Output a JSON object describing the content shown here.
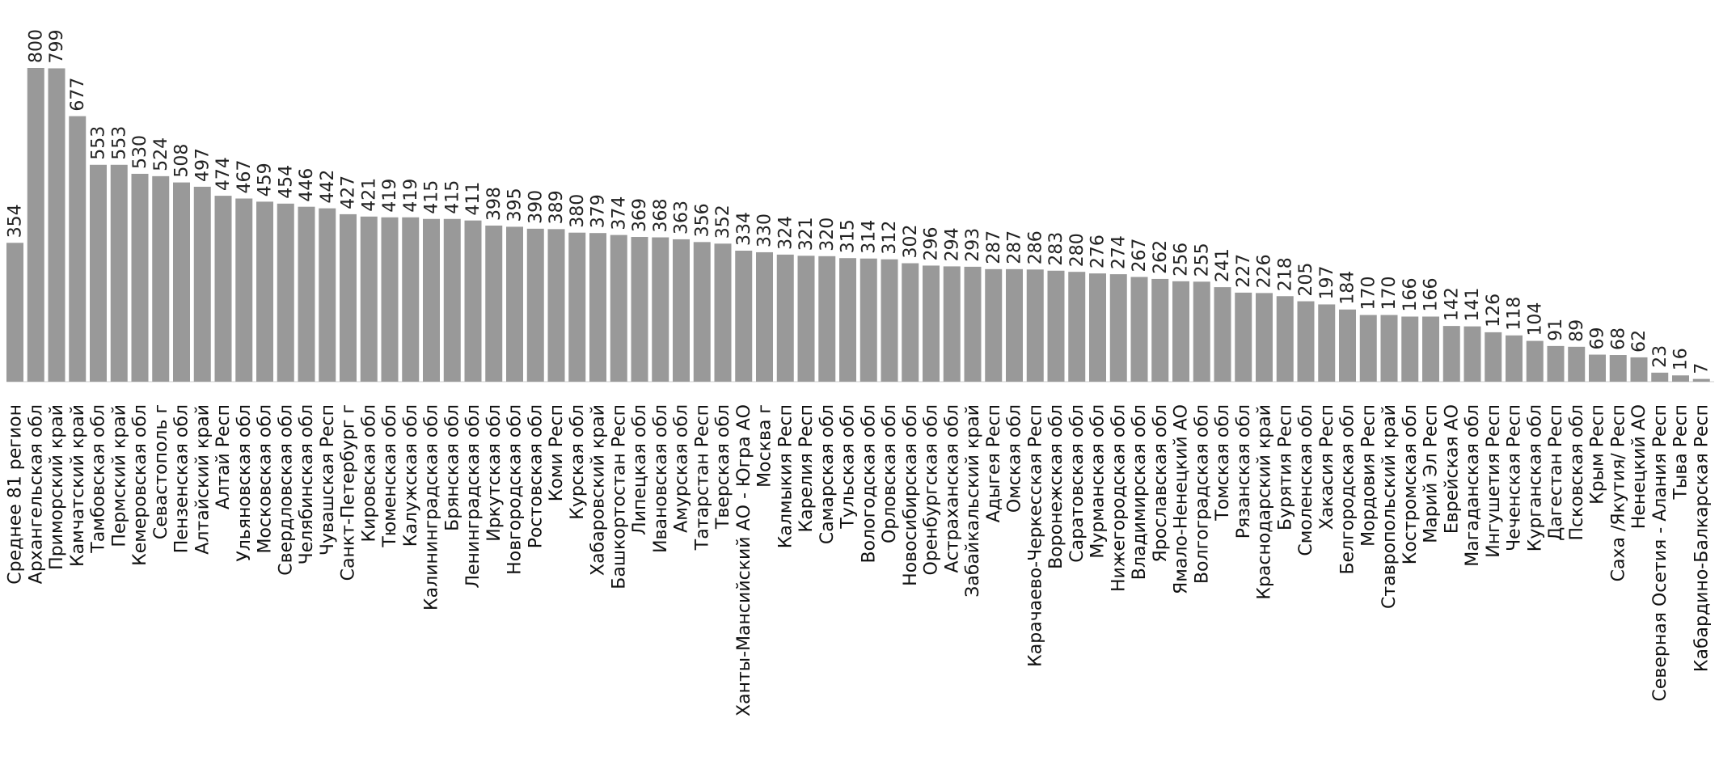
{
  "chart_data": {
    "type": "bar",
    "title": "",
    "xlabel": "",
    "ylabel": "",
    "ylim": [
      0,
      800
    ],
    "grid": false,
    "legend": "none",
    "bar_color": "#999999",
    "categories": [
      "Среднее 81 регион",
      "Архангельская обл",
      "Приморский край",
      "Камчатский край",
      "Тамбовская обл",
      "Пермский край",
      "Кемеровская обл",
      "Севастополь г",
      "Пензенская обл",
      "Алтайский край",
      "Алтай Респ",
      "Ульяновская обл",
      "Московская обл",
      "Свердловская обл",
      "Челябинская обл",
      "Чувашская Респ",
      "Санкт-Петербург г",
      "Кировская обл",
      "Тюменская обл",
      "Калужская обл",
      "Калининградская обл",
      "Брянская обл",
      "Ленинградская обл",
      "Иркутская обл",
      "Новгородская обл",
      "Ростовская обл",
      "Коми Респ",
      "Курская обл",
      "Хабаровский край",
      "Башкортостан Респ",
      "Липецкая обл",
      "Ивановская обл",
      "Амурская обл",
      "Татарстан Респ",
      "Тверская обл",
      "Ханты-Мансийский АО - Югра АО",
      "Москва г",
      "Калмыкия Респ",
      "Карелия Респ",
      "Самарская обл",
      "Тульская обл",
      "Вологодская обл",
      "Орловская обл",
      "Новосибирская обл",
      "Оренбургская обл",
      "Астраханская обл",
      "Забайкальский край",
      "Адыгея Респ",
      "Омская обл",
      "Карачаево-Черкесская Респ",
      "Воронежская обл",
      "Саратовская обл",
      "Мурманская обл",
      "Нижегородская обл",
      "Владимирская обл",
      "Ярославская обл",
      "Ямало-Ненецкий АО",
      "Волгоградская обл",
      "Томская обл",
      "Рязанская обл",
      "Краснодарский край",
      "Бурятия Респ",
      "Смоленская обл",
      "Хакасия Респ",
      "Белгородская обл",
      "Мордовия Респ",
      "Ставропольский край",
      "Костромская обл",
      "Марий Эл Респ",
      "Еврейская АО",
      "Магаданская обл",
      "Ингушетия Респ",
      "Чеченская Респ",
      "Курганская обл",
      "Дагестан Респ",
      "Псковская обл",
      "Крым Респ",
      "Саха /Якутия/ Респ",
      "Ненецкий АО",
      "Северная Осетия - Алания Респ",
      "Тыва Респ",
      "Кабардино-Балкарская Респ"
    ],
    "values": [
      354,
      800,
      799,
      677,
      553,
      553,
      530,
      524,
      508,
      497,
      474,
      467,
      459,
      454,
      446,
      442,
      427,
      421,
      419,
      419,
      415,
      415,
      411,
      398,
      395,
      390,
      389,
      380,
      379,
      374,
      369,
      368,
      363,
      356,
      352,
      334,
      330,
      324,
      321,
      320,
      315,
      314,
      312,
      302,
      296,
      294,
      293,
      287,
      287,
      286,
      283,
      280,
      276,
      274,
      267,
      262,
      256,
      255,
      241,
      227,
      226,
      218,
      205,
      197,
      184,
      170,
      170,
      166,
      166,
      142,
      141,
      126,
      118,
      104,
      91,
      89,
      69,
      68,
      62,
      23,
      16,
      7
    ]
  }
}
